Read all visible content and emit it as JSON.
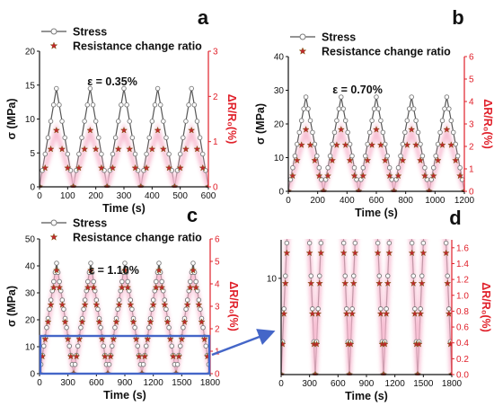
{
  "colors": {
    "stress": "#555555",
    "resistance_fill": "#c0282f",
    "resistance_edge": "#6b5a00",
    "glow": "#f7b8cf",
    "right_axis": "#e0202a",
    "highlight_box": "#4466c8"
  },
  "legend": {
    "stress_label": "Stress",
    "resistance_label": "Resistance change ratio"
  },
  "chart_data": [
    {
      "panel": "a",
      "type": "line",
      "strain_label": "ε = 0.35%",
      "xlabel": "Time (s)",
      "ylabel": "σ (MPa)",
      "y2label": "ΔR/R₀(%)",
      "xlim": [
        0,
        600
      ],
      "ylim": [
        0,
        20
      ],
      "y2lim": [
        0,
        3
      ],
      "xticks": [
        0,
        100,
        200,
        300,
        400,
        500,
        600
      ],
      "yticks": [
        0,
        5,
        10,
        15,
        20
      ],
      "y2ticks": [
        0,
        1,
        2,
        3
      ],
      "cycles": 5,
      "period": 120,
      "stress_peak": 14.5,
      "resistance_peak": 1.25,
      "points_per_half": 6
    },
    {
      "panel": "b",
      "type": "line",
      "strain_label": "ε = 0.70%",
      "xlabel": "Time (s)",
      "ylabel": "σ (MPa)",
      "y2label": "ΔR/R₀(%)",
      "xlim": [
        0,
        1200
      ],
      "ylim": [
        0,
        40
      ],
      "y2lim": [
        0,
        6
      ],
      "xticks": [
        0,
        200,
        400,
        600,
        800,
        1000,
        1200
      ],
      "yticks": [
        0,
        10,
        20,
        30,
        40
      ],
      "y2ticks": [
        0,
        1,
        2,
        3,
        4,
        5,
        6
      ],
      "cycles": 5,
      "period": 240,
      "stress_peak": 28,
      "resistance_peak": 2.75,
      "points_per_half": 8
    },
    {
      "panel": "c",
      "type": "line",
      "strain_label": "ε = 1.10%",
      "xlabel": "Time (s)",
      "ylabel": "σ (MPa)",
      "y2label": "ΔR/R₀(%)",
      "xlim": [
        0,
        1800
      ],
      "ylim": [
        0,
        50
      ],
      "y2lim": [
        0,
        6
      ],
      "xticks": [
        0,
        300,
        600,
        900,
        1200,
        1500,
        1800
      ],
      "yticks": [
        0,
        10,
        20,
        30,
        40,
        50
      ],
      "y2ticks": [
        0,
        1,
        2,
        3,
        4,
        5,
        6
      ],
      "cycles": 5,
      "period": 360,
      "stress_peak": 41,
      "resistance_peak": 4.6,
      "points_per_half": 12,
      "highlight_ylim": [
        0,
        14
      ]
    },
    {
      "panel": "d",
      "type": "line",
      "xlabel": "Time (s)",
      "ylabel": "",
      "y2label": "ΔR/R₀(%)",
      "xlim": [
        0,
        1800
      ],
      "ylim": [
        0,
        14
      ],
      "y2lim": [
        0,
        1.7
      ],
      "xticks": [
        0,
        300,
        600,
        900,
        1200,
        1500,
        1800
      ],
      "yticks": [
        10
      ],
      "y2ticks": [
        0.0,
        0.2,
        0.4,
        0.6,
        0.8,
        1.0,
        1.2,
        1.4,
        1.6
      ],
      "cycles": 5,
      "period": 360,
      "stress_peak": 41,
      "resistance_peak": 4.6,
      "points_per_half": 12
    }
  ]
}
